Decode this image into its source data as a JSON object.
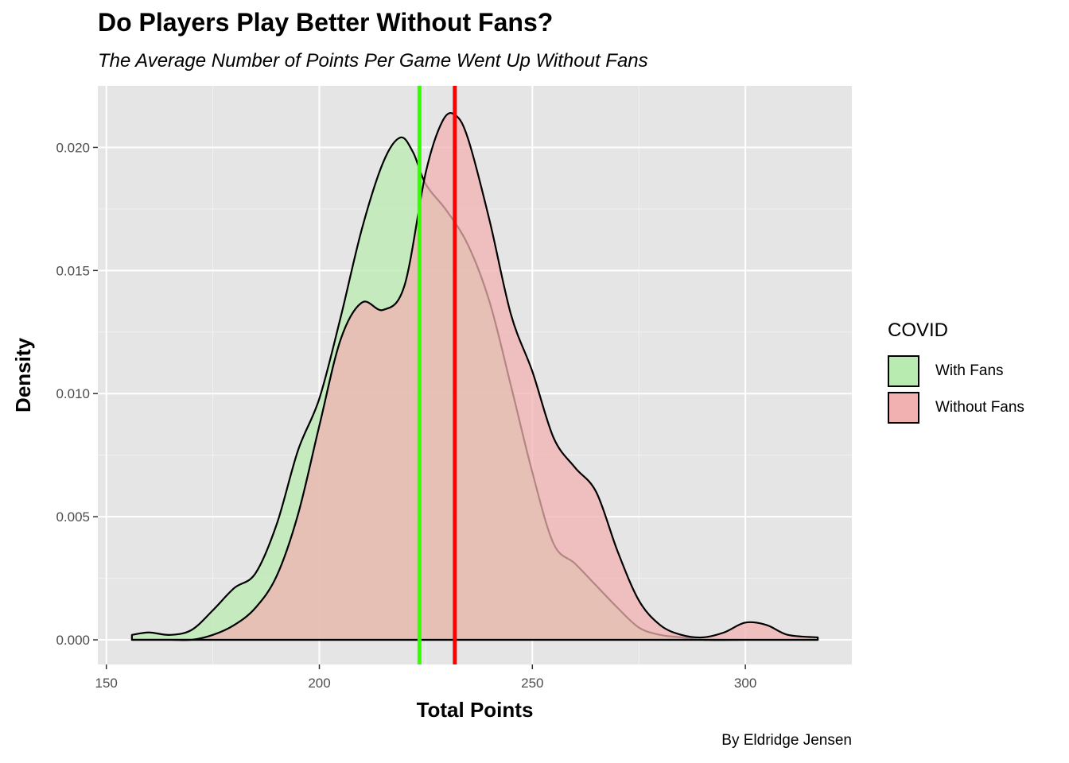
{
  "chart_data": {
    "type": "area",
    "title": "Do Players Play Better Without Fans?",
    "subtitle": "The Average Number of Points Per Game Went Up Without Fans",
    "caption": "By Eldridge Jensen",
    "xlabel": "Total Points",
    "ylabel": "Density",
    "xlim": [
      148,
      325
    ],
    "ylim": [
      -0.001,
      0.0225
    ],
    "x_ticks": [
      150,
      200,
      250,
      300
    ],
    "x_tick_labels": [
      "150",
      "200",
      "250",
      "300"
    ],
    "y_ticks": [
      0,
      0.005,
      0.01,
      0.015,
      0.02
    ],
    "y_tick_labels": [
      "0.000",
      "0.005",
      "0.010",
      "0.015",
      "0.020"
    ],
    "grid": true,
    "legend_position": "right",
    "legend_title": "COVID",
    "series": [
      {
        "name": "With Fans",
        "fill": "#b8ebb0",
        "points": [
          [
            156,
            0.0002
          ],
          [
            160,
            0.0003
          ],
          [
            165,
            0.0002
          ],
          [
            170,
            0.0004
          ],
          [
            175,
            0.0012
          ],
          [
            180,
            0.0021
          ],
          [
            185,
            0.0027
          ],
          [
            190,
            0.0047
          ],
          [
            195,
            0.0077
          ],
          [
            200,
            0.0098
          ],
          [
            205,
            0.0131
          ],
          [
            210,
            0.0167
          ],
          [
            215,
            0.0194
          ],
          [
            219,
            0.0204
          ],
          [
            222,
            0.0198
          ],
          [
            225,
            0.0185
          ],
          [
            230,
            0.0174
          ],
          [
            235,
            0.016
          ],
          [
            240,
            0.0137
          ],
          [
            245,
            0.0103
          ],
          [
            250,
            0.0068
          ],
          [
            255,
            0.0039
          ],
          [
            260,
            0.0031
          ],
          [
            265,
            0.0022
          ],
          [
            270,
            0.0013
          ],
          [
            275,
            0.0005
          ],
          [
            280,
            0.0002
          ],
          [
            285,
            0.0001
          ],
          [
            290,
            0.0
          ],
          [
            300,
            0.0
          ],
          [
            310,
            0.0
          ],
          [
            317,
            0.0
          ]
        ]
      },
      {
        "name": "Without Fans",
        "fill": "#f2b1b1",
        "points": [
          [
            156,
            0.0
          ],
          [
            165,
            0.0
          ],
          [
            170,
            0.0
          ],
          [
            175,
            0.0002
          ],
          [
            180,
            0.0006
          ],
          [
            185,
            0.0013
          ],
          [
            190,
            0.0026
          ],
          [
            195,
            0.0051
          ],
          [
            200,
            0.0087
          ],
          [
            205,
            0.0122
          ],
          [
            210,
            0.0137
          ],
          [
            215,
            0.0134
          ],
          [
            220,
            0.0144
          ],
          [
            225,
            0.019
          ],
          [
            229,
            0.0211
          ],
          [
            232,
            0.0213
          ],
          [
            235,
            0.0203
          ],
          [
            240,
            0.017
          ],
          [
            245,
            0.0132
          ],
          [
            250,
            0.0109
          ],
          [
            255,
            0.0082
          ],
          [
            260,
            0.007
          ],
          [
            265,
            0.006
          ],
          [
            270,
            0.0036
          ],
          [
            275,
            0.0016
          ],
          [
            280,
            0.0006
          ],
          [
            285,
            0.0002
          ],
          [
            290,
            0.0001
          ],
          [
            295,
            0.0003
          ],
          [
            300,
            0.0007
          ],
          [
            305,
            0.0006
          ],
          [
            310,
            0.0002
          ],
          [
            317,
            0.0001
          ]
        ]
      }
    ],
    "reference_lines": [
      {
        "series": "With Fans",
        "x": 223.5,
        "color": "#33ff00"
      },
      {
        "series": "Without Fans",
        "x": 231.8,
        "color": "#ff0000"
      }
    ]
  }
}
